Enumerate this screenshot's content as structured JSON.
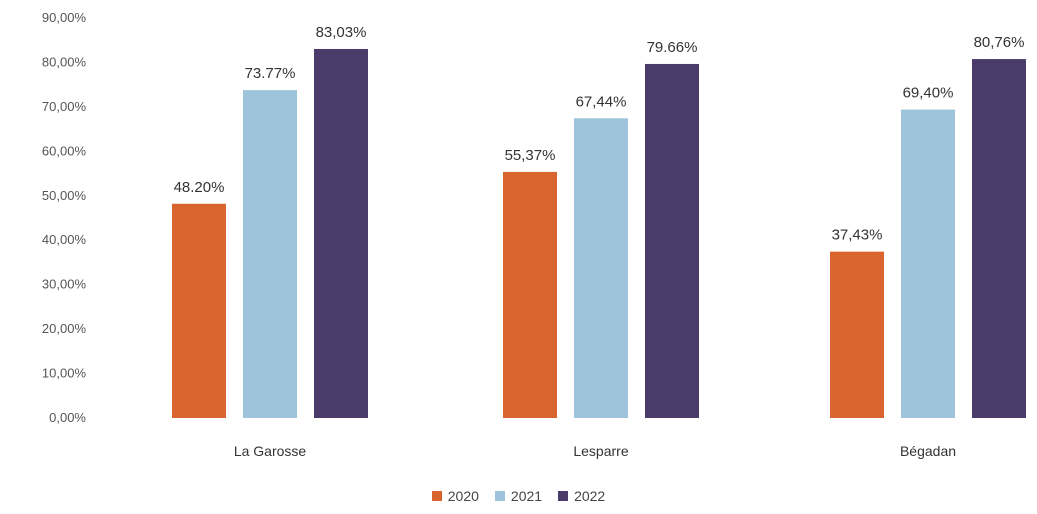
{
  "chart_data": {
    "type": "bar",
    "categories": [
      "La Garosse",
      "Lesparre",
      "Bégadan"
    ],
    "series": [
      {
        "name": "2020",
        "values": [
          48.2,
          55.37,
          37.43
        ],
        "labels": [
          "48.20%",
          "55,37%",
          "37,43%"
        ],
        "color": "#d9642e"
      },
      {
        "name": "2021",
        "values": [
          73.77,
          67.44,
          69.4
        ],
        "labels": [
          "73.77%",
          "67,44%",
          "69,40%"
        ],
        "color": "#9ec4dc"
      },
      {
        "name": "2022",
        "values": [
          83.03,
          79.66,
          80.76
        ],
        "labels": [
          "83,03%",
          "79.66%",
          "80,76%"
        ],
        "color": "#4b3b6b"
      }
    ],
    "yticks": [
      "0,00%",
      "10,00%",
      "20,00%",
      "30,00%",
      "40,00%",
      "50,00%",
      "60,00%",
      "70,00%",
      "80,00%",
      "90,00%"
    ],
    "ylim": [
      0,
      90
    ],
    "grid": false,
    "legend_position": "bottom"
  }
}
